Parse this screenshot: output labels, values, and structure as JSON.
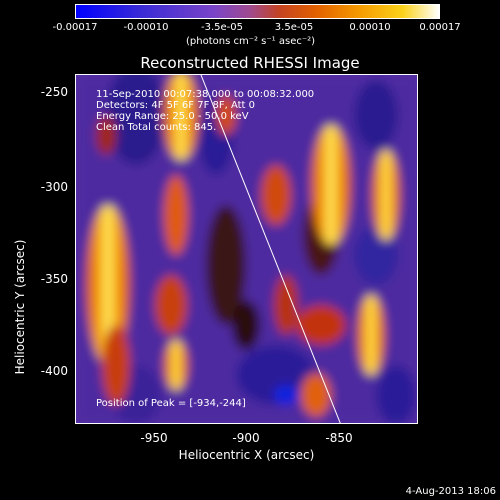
{
  "colorbar": {
    "ticks": [
      "-0.00017",
      "-0.00010",
      "-3.5e-05",
      "3.5e-05",
      "0.00010",
      "0.00017"
    ],
    "units": "(photons cm⁻² s⁻¹ asec⁻²)"
  },
  "title": "Reconstructed RHESSI Image",
  "info": {
    "time": "11-Sep-2010 00:07:38.000 to 00:08:32.000",
    "detectors": "Detectors: 4F 5F 6F 7F 8F, Att 0",
    "energy": "Energy Range: 25.0 - 50.0 keV",
    "clean": "Clean    Total counts: 845.",
    "peak": "Position of Peak = [-934,-244]"
  },
  "axes": {
    "xlabel": "Heliocentric X (arcsec)",
    "ylabel": "Heliocentric Y (arcsec)",
    "xticks": [
      "-950",
      "-900",
      "-850"
    ],
    "yticks": [
      "-250",
      "-300",
      "-350",
      "-400"
    ]
  },
  "footer_date": "4-Aug-2013 18:06"
}
